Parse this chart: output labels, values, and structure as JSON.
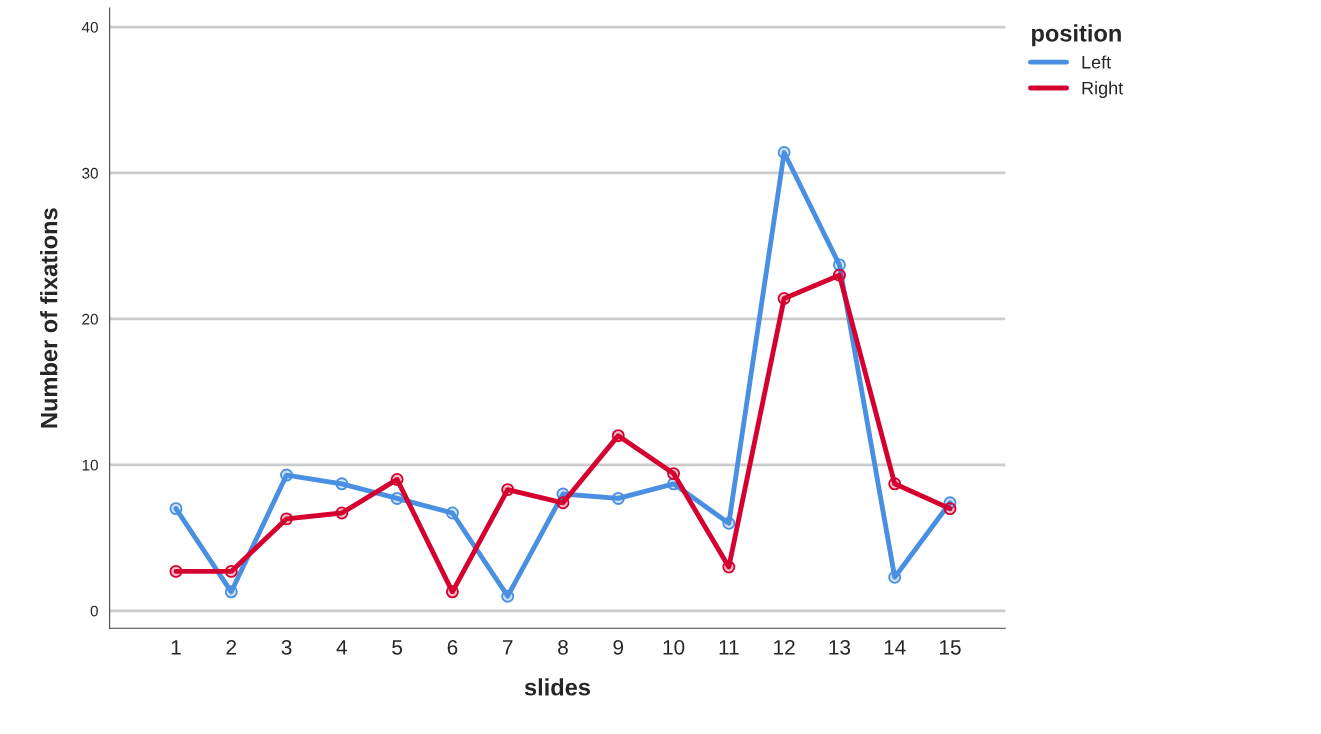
{
  "chart_data": {
    "type": "line",
    "xlabel": "slides",
    "ylabel": "Number of fixations",
    "legend_title": "position",
    "categories": [
      "1",
      "2",
      "3",
      "4",
      "5",
      "6",
      "7",
      "8",
      "9",
      "10",
      "11",
      "12",
      "13",
      "14",
      "15"
    ],
    "series": [
      {
        "name": "Left",
        "color": "#4a90e2",
        "values": [
          7.0,
          1.3,
          9.3,
          8.7,
          7.7,
          6.7,
          1.0,
          8.0,
          7.7,
          8.7,
          6.0,
          31.4,
          23.7,
          2.3,
          7.4
        ]
      },
      {
        "name": "Right",
        "color": "#d5002f",
        "values": [
          2.7,
          2.7,
          6.3,
          6.7,
          9.0,
          1.3,
          8.3,
          7.4,
          12.0,
          9.4,
          3.0,
          21.4,
          23.0,
          8.7,
          7.0
        ]
      }
    ],
    "ylim": [
      -1.2,
      41.3
    ],
    "yticks": [
      0,
      10,
      20,
      30,
      40
    ],
    "grid": "y",
    "legend": "right",
    "marker": "circle",
    "line_style": "solid"
  }
}
